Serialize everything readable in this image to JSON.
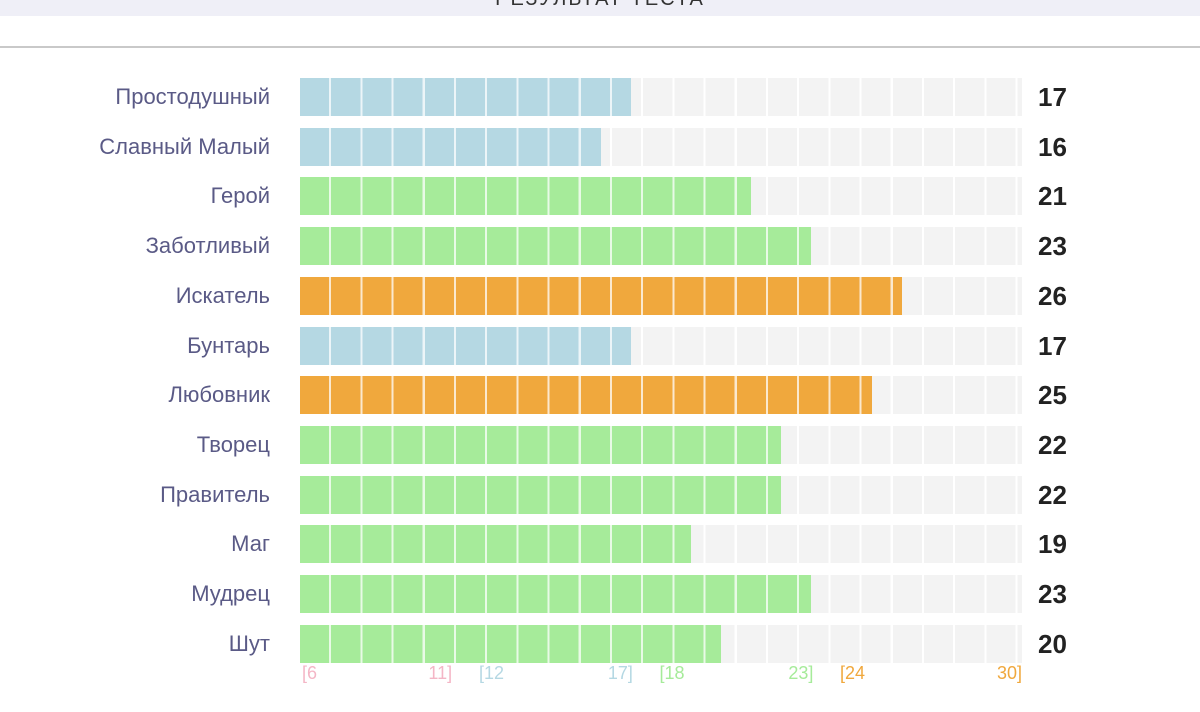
{
  "header": {
    "title": "РЕЗУЛЬТАТ ТЕСТА"
  },
  "chart_data": {
    "type": "bar",
    "orientation": "horizontal",
    "categories": [
      "Простодушный",
      "Славный Малый",
      "Герой",
      "Заботливый",
      "Искатель",
      "Бунтарь",
      "Любовник",
      "Творец",
      "Правитель",
      "Маг",
      "Мудрец",
      "Шут"
    ],
    "values": [
      17,
      16,
      21,
      23,
      26,
      17,
      25,
      22,
      22,
      19,
      23,
      20
    ],
    "xlim": [
      6,
      30
    ],
    "ranges": [
      {
        "from": 6,
        "to": 11,
        "color": "#f4b6c6",
        "labels": [
          "[6",
          "11]"
        ]
      },
      {
        "from": 12,
        "to": 17,
        "color": "#b5d8e3",
        "labels": [
          "[12",
          "17]"
        ]
      },
      {
        "from": 18,
        "to": 23,
        "color": "#a6eb9a",
        "labels": [
          "[18",
          "23]"
        ]
      },
      {
        "from": 24,
        "to": 30,
        "color": "#f0a83d",
        "labels": [
          "[24",
          "30]"
        ]
      }
    ],
    "track_color": "#f3f3f3",
    "label_color": "#5a5a86",
    "grid": true,
    "legend": "none"
  }
}
